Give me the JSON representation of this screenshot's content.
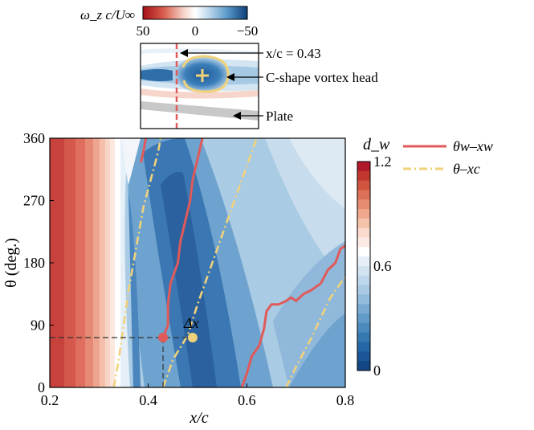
{
  "chart_data": {
    "type": "heatmap",
    "main_panel": {
      "xlabel": "x/c",
      "ylabel": "θ (deg.)",
      "xlim": [
        0.2,
        0.8
      ],
      "ylim": [
        0,
        360
      ],
      "xticks": [
        "0.2",
        "0.4",
        "0.6",
        "0.8"
      ],
      "yticks": [
        "0",
        "90",
        "180",
        "270",
        "360"
      ],
      "colorbar": {
        "label": "d_w",
        "range": [
          0,
          1.2
        ],
        "ticks": [
          "0",
          "0.6",
          "1.2"
        ]
      },
      "series": [
        {
          "name": "θw–xw",
          "color": "#e05a5a",
          "style": "solid",
          "segments": [
            [
              [
                0.385,
                325
              ],
              [
                0.39,
                340
              ],
              [
                0.395,
                360
              ]
            ],
            [
              [
                0.43,
                72
              ],
              [
                0.44,
                90
              ],
              [
                0.44,
                120
              ],
              [
                0.445,
                150
              ],
              [
                0.46,
                180
              ],
              [
                0.465,
                210
              ],
              [
                0.475,
                240
              ],
              [
                0.485,
                270
              ],
              [
                0.49,
                300
              ],
              [
                0.5,
                330
              ],
              [
                0.51,
                360
              ]
            ],
            [
              [
                0.59,
                0
              ],
              [
                0.6,
                20
              ],
              [
                0.61,
                45
              ],
              [
                0.625,
                60
              ],
              [
                0.635,
                85
              ],
              [
                0.64,
                110
              ],
              [
                0.65,
                120
              ],
              [
                0.665,
                120
              ],
              [
                0.68,
                125
              ],
              [
                0.69,
                130
              ],
              [
                0.7,
                125
              ],
              [
                0.715,
                135
              ],
              [
                0.73,
                140
              ],
              [
                0.75,
                150
              ],
              [
                0.765,
                170
              ],
              [
                0.78,
                180
              ],
              [
                0.79,
                200
              ],
              [
                0.8,
                205
              ]
            ]
          ]
        },
        {
          "name": "θ–xc",
          "color": "#f0d27a",
          "style": "dashdot",
          "segments": [
            [
              [
                0.33,
                0
              ],
              [
                0.34,
                40
              ],
              [
                0.35,
                90
              ],
              [
                0.36,
                140
              ],
              [
                0.375,
                200
              ],
              [
                0.39,
                260
              ],
              [
                0.405,
                300
              ],
              [
                0.42,
                340
              ],
              [
                0.425,
                360
              ]
            ],
            [
              [
                0.43,
                0
              ],
              [
                0.45,
                40
              ],
              [
                0.48,
                75
              ],
              [
                0.5,
                120
              ],
              [
                0.53,
                180
              ],
              [
                0.56,
                240
              ],
              [
                0.59,
                300
              ],
              [
                0.62,
                360
              ]
            ],
            [
              [
                0.68,
                0
              ],
              [
                0.7,
                30
              ],
              [
                0.73,
                70
              ],
              [
                0.75,
                100
              ],
              [
                0.77,
                130
              ],
              [
                0.8,
                160
              ]
            ]
          ]
        }
      ],
      "markers": [
        {
          "x": 0.43,
          "y": 72,
          "color": "#e05a5a"
        },
        {
          "x": 0.49,
          "y": 72,
          "color": "#f0d27a"
        }
      ],
      "guide": {
        "x": 0.43,
        "y": 72
      },
      "annotation": "Δx"
    },
    "inset_panel": {
      "colorbar_label": "ω_z c/U∞",
      "colorbar_ticks": [
        "50",
        "0",
        "−50"
      ],
      "annotations": [
        "x/c = 0.43",
        "C-shape vortex head",
        "Plate"
      ]
    },
    "legend": {
      "placement": "top-right",
      "entries": [
        "θw–xw",
        "θ–xc"
      ]
    }
  }
}
